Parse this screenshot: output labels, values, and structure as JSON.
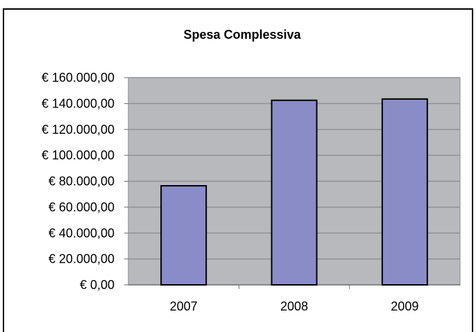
{
  "chart_data": {
    "type": "bar",
    "title": "Spesa Complessiva",
    "xlabel": "",
    "ylabel": "",
    "categories": [
      "2007",
      "2008",
      "2009"
    ],
    "values": [
      76500,
      142500,
      143500
    ],
    "ylim": [
      0,
      160000
    ],
    "yticks": [
      0,
      20000,
      40000,
      60000,
      80000,
      100000,
      120000,
      140000,
      160000
    ],
    "ytick_labels": [
      "€ 0,00",
      "€ 20.000,00",
      "€ 40.000,00",
      "€ 60.000,00",
      "€ 80.000,00",
      "€ 100.000,00",
      "€ 120.000,00",
      "€ 140.000,00",
      "€ 160.000,00"
    ],
    "grid": true,
    "legend": "none",
    "colors": {
      "plot_background": "#b7b9bc",
      "bar_fill": "#8a8cc8",
      "bar_stroke": "#000000",
      "gridline": "#8f9194"
    }
  }
}
